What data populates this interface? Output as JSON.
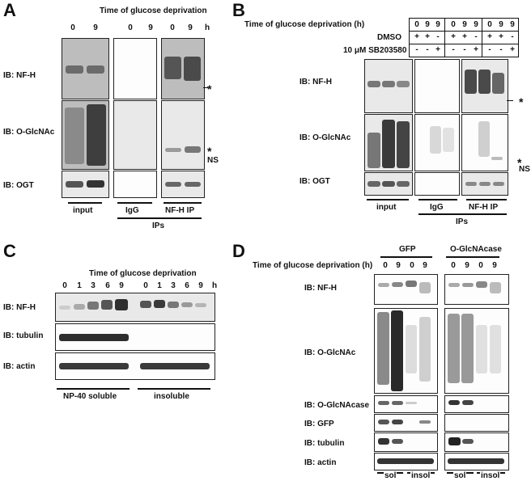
{
  "panelA": {
    "letter": "A",
    "header": "Time of glucose deprivation",
    "lanes": [
      "0",
      "9",
      "0",
      "9",
      "0",
      "9"
    ],
    "unit": "h",
    "rows": [
      "IB: NF-H",
      "IB: O-GlcNAc",
      "IB: OGT"
    ],
    "groups": [
      "input",
      "IgG",
      "NF-H IP"
    ],
    "ips": "IPs",
    "star": "*",
    "ns": "NS"
  },
  "panelB": {
    "letter": "B",
    "header": "Time of glucose deprivation (h)",
    "times": [
      "0",
      "9",
      "9",
      "0",
      "9",
      "9",
      "0",
      "9",
      "9"
    ],
    "dmso_label": "DMSO",
    "dmso": [
      "+",
      "+",
      "-",
      "+",
      "+",
      "-",
      "+",
      "+",
      "-"
    ],
    "sb_label": "10 μM SB203580",
    "sb": [
      "-",
      "-",
      "+",
      "-",
      "-",
      "+",
      "-",
      "-",
      "+"
    ],
    "rows": [
      "IB: NF-H",
      "IB: O-GlcNAc",
      "IB: OGT"
    ],
    "groups": [
      "input",
      "IgG",
      "NF-H IP"
    ],
    "ips": "IPs",
    "star": "*",
    "ns": "NS"
  },
  "panelC": {
    "letter": "C",
    "header": "Time of glucose deprivation",
    "lanes": [
      "0",
      "1",
      "3",
      "6",
      "9",
      "0",
      "1",
      "3",
      "6",
      "9"
    ],
    "unit": "h",
    "rows": [
      "IB: NF-H",
      "IB: tubulin",
      "IB: actin"
    ],
    "groups": [
      "NP-40 soluble",
      "insoluble"
    ]
  },
  "panelD": {
    "letter": "D",
    "header": "Time of glucose deprivation (h)",
    "constructs": [
      "GFP",
      "O-GlcNAcase"
    ],
    "lanes": [
      "0",
      "9",
      "0",
      "9",
      "0",
      "9",
      "0",
      "9"
    ],
    "rows": [
      "IB: NF-H",
      "IB: O-GlcNAc",
      "IB: O-GlcNAcase",
      "IB: GFP",
      "IB: tubulin",
      "IB: actin"
    ],
    "groups": [
      "sol",
      "insol",
      "sol",
      "insol"
    ]
  }
}
